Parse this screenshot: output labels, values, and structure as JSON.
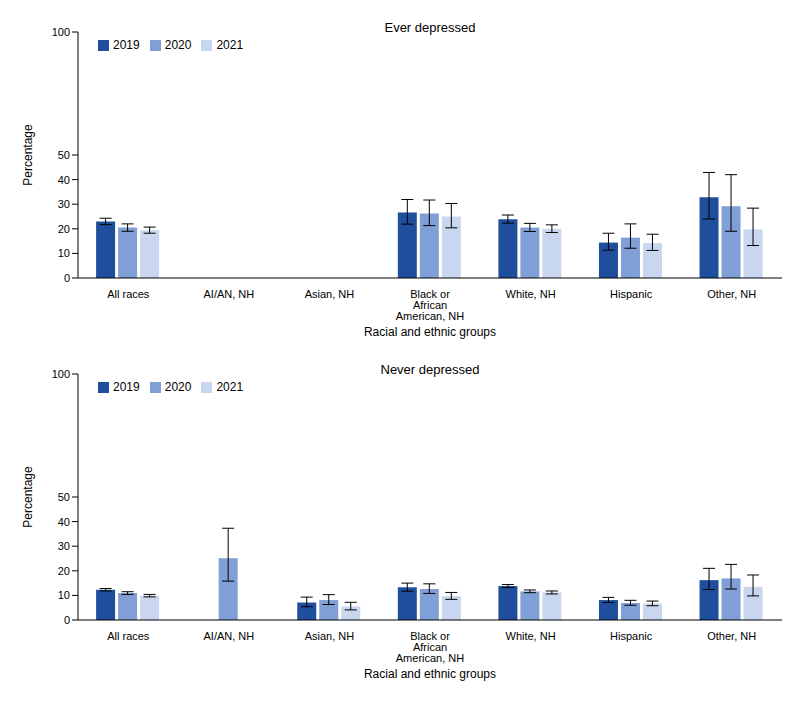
{
  "chart_data": [
    {
      "type": "bar",
      "title": "Ever depressed",
      "x_label": "Racial and ethnic groups",
      "y_label": "Percentage",
      "categories": [
        "All races",
        "AI/AN, NH",
        "Asian, NH",
        "Black or African American, NH",
        "White, NH",
        "Hispanic",
        "Other, NH"
      ],
      "ylim": [
        0,
        100
      ],
      "yticks": [
        0,
        10,
        20,
        30,
        40,
        50,
        100
      ],
      "grid": false,
      "legend": "upper left",
      "series": [
        {
          "name": "2019",
          "color": "#1f4e9c",
          "values": [
            23.0,
            null,
            null,
            26.6,
            23.9,
            14.4,
            32.8
          ],
          "ci_low": [
            21.7,
            null,
            null,
            21.9,
            22.3,
            11.3,
            24.0
          ],
          "ci_high": [
            24.3,
            null,
            null,
            31.9,
            25.6,
            18.2,
            42.9
          ]
        },
        {
          "name": "2020",
          "color": "#7f9fd6",
          "values": [
            20.5,
            null,
            null,
            26.2,
            20.5,
            16.4,
            29.2
          ],
          "ci_low": [
            19.0,
            null,
            null,
            21.3,
            18.9,
            12.1,
            19.0
          ],
          "ci_high": [
            22.0,
            null,
            null,
            31.7,
            22.2,
            22.0,
            42.0
          ]
        },
        {
          "name": "2021",
          "color": "#c9d6ef",
          "values": [
            19.4,
            null,
            null,
            25.0,
            20.0,
            14.2,
            19.8
          ],
          "ci_low": [
            18.2,
            null,
            null,
            20.4,
            18.5,
            11.2,
            13.2
          ],
          "ci_high": [
            20.7,
            null,
            null,
            30.3,
            21.6,
            17.8,
            28.4
          ]
        }
      ]
    },
    {
      "type": "bar",
      "title": "Never depressed",
      "x_label": "Racial and ethnic groups",
      "y_label": "Percentage",
      "categories": [
        "All races",
        "AI/AN, NH",
        "Asian, NH",
        "Black or African American, NH",
        "White, NH",
        "Hispanic",
        "Other, NH"
      ],
      "ylim": [
        0,
        100
      ],
      "yticks": [
        0,
        10,
        20,
        30,
        40,
        50,
        100
      ],
      "grid": false,
      "legend": "upper left",
      "series": [
        {
          "name": "2019",
          "color": "#1f4e9c",
          "values": [
            12.3,
            null,
            7.1,
            13.3,
            13.8,
            8.1,
            16.2
          ],
          "ci_low": [
            11.8,
            null,
            5.4,
            11.7,
            13.2,
            7.1,
            12.4
          ],
          "ci_high": [
            12.8,
            null,
            9.3,
            15.0,
            14.4,
            9.2,
            21.0
          ]
        },
        {
          "name": "2020",
          "color": "#7f9fd6",
          "values": [
            11.0,
            25.1,
            8.1,
            12.6,
            11.6,
            6.9,
            16.9
          ],
          "ci_low": [
            10.4,
            15.8,
            6.3,
            10.8,
            11.1,
            6.0,
            12.6
          ],
          "ci_high": [
            11.5,
            37.3,
            10.3,
            14.7,
            12.2,
            8.0,
            22.6
          ]
        },
        {
          "name": "2021",
          "color": "#c9d6ef",
          "values": [
            9.9,
            null,
            5.5,
            9.7,
            11.2,
            6.7,
            13.5
          ],
          "ci_low": [
            9.4,
            null,
            4.1,
            8.4,
            10.6,
            5.8,
            9.8
          ],
          "ci_high": [
            10.4,
            null,
            7.2,
            11.2,
            11.8,
            7.7,
            18.3
          ]
        }
      ]
    }
  ]
}
